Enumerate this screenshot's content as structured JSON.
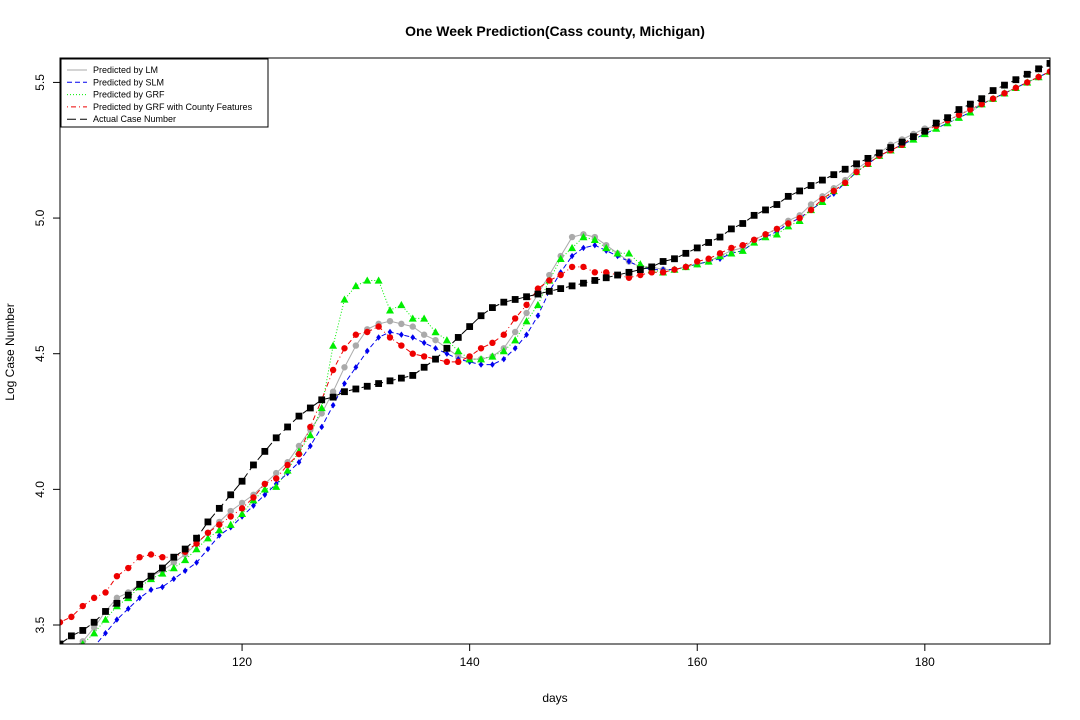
{
  "chart_data": {
    "type": "scatter",
    "title": "One Week Prediction(Cass county, Michigan)",
    "xlabel": "days",
    "ylabel": "Log Case Number",
    "xlim": [
      104,
      191
    ],
    "ylim": [
      3.43,
      5.59
    ],
    "x_ticks": [
      "120",
      "140",
      "160",
      "180"
    ],
    "y_ticks": [
      "3.5",
      "4.0",
      "4.5",
      "5.0",
      "5.5"
    ],
    "legend_position": "top-left",
    "x": [
      104,
      105,
      106,
      107,
      108,
      109,
      110,
      111,
      112,
      113,
      114,
      115,
      116,
      117,
      118,
      119,
      120,
      121,
      122,
      123,
      124,
      125,
      126,
      127,
      128,
      129,
      130,
      131,
      132,
      133,
      134,
      135,
      136,
      137,
      138,
      139,
      140,
      141,
      142,
      143,
      144,
      145,
      146,
      147,
      148,
      149,
      150,
      151,
      152,
      153,
      154,
      155,
      156,
      157,
      158,
      159,
      160,
      161,
      162,
      163,
      164,
      165,
      166,
      167,
      168,
      169,
      170,
      171,
      172,
      173,
      174,
      175,
      176,
      177,
      178,
      179,
      180,
      181,
      182,
      183,
      184,
      185,
      186,
      187,
      188,
      189,
      190,
      191
    ],
    "series": [
      {
        "name": "Predicted by LM",
        "line_style": "solid",
        "marker": "circle",
        "color": "#aaaaaa",
        "values": [
          3.39,
          3.41,
          3.44,
          3.49,
          3.55,
          3.6,
          3.62,
          3.65,
          3.68,
          3.7,
          3.73,
          3.76,
          3.8,
          3.84,
          3.88,
          3.92,
          3.95,
          3.98,
          4.02,
          4.06,
          4.1,
          4.16,
          4.22,
          4.28,
          4.36,
          4.45,
          4.53,
          4.59,
          4.61,
          4.62,
          4.61,
          4.6,
          4.57,
          4.55,
          4.52,
          4.49,
          4.48,
          4.48,
          4.49,
          4.52,
          4.58,
          4.65,
          4.72,
          4.79,
          4.86,
          4.93,
          4.94,
          4.93,
          4.9,
          4.87,
          4.84,
          4.82,
          4.82,
          4.81,
          4.81,
          4.82,
          4.83,
          4.84,
          4.86,
          4.88,
          4.89,
          4.92,
          4.94,
          4.96,
          4.99,
          5.01,
          5.05,
          5.08,
          5.11,
          5.14,
          5.18,
          5.21,
          5.24,
          5.27,
          5.29,
          5.31,
          5.33,
          5.34,
          5.36,
          5.38,
          5.4,
          5.42,
          5.44,
          5.46,
          5.48,
          5.5,
          5.52,
          5.54
        ]
      },
      {
        "name": "Predicted by SLM",
        "line_style": "dashed",
        "marker": "diamond",
        "color": "#0000ee",
        "values": [
          3.33,
          3.36,
          3.39,
          3.42,
          3.47,
          3.52,
          3.56,
          3.6,
          3.63,
          3.64,
          3.67,
          3.7,
          3.73,
          3.78,
          3.83,
          3.86,
          3.9,
          3.94,
          3.98,
          4.02,
          4.06,
          4.1,
          4.16,
          4.23,
          4.31,
          4.39,
          4.45,
          4.51,
          4.56,
          4.58,
          4.57,
          4.56,
          4.54,
          4.52,
          4.5,
          4.48,
          4.47,
          4.46,
          4.46,
          4.48,
          4.52,
          4.57,
          4.64,
          4.73,
          4.8,
          4.86,
          4.89,
          4.9,
          4.88,
          4.86,
          4.84,
          4.82,
          4.81,
          4.81,
          4.81,
          4.82,
          4.83,
          4.84,
          4.85,
          4.87,
          4.88,
          4.91,
          4.93,
          4.95,
          4.98,
          5.0,
          5.03,
          5.06,
          5.09,
          5.13,
          5.17,
          5.2,
          5.23,
          5.25,
          5.27,
          5.29,
          5.31,
          5.33,
          5.35,
          5.37,
          5.39,
          5.42,
          5.44,
          5.46,
          5.48,
          5.5,
          5.52,
          5.54
        ]
      },
      {
        "name": "Predicted by GRF",
        "line_style": "dotted",
        "marker": "triangle",
        "color": "#00ee00",
        "values": [
          3.38,
          3.4,
          3.43,
          3.47,
          3.52,
          3.57,
          3.6,
          3.64,
          3.67,
          3.69,
          3.71,
          3.74,
          3.78,
          3.82,
          3.85,
          3.87,
          3.91,
          3.96,
          4.0,
          4.01,
          4.07,
          4.14,
          4.2,
          4.3,
          4.53,
          4.7,
          4.75,
          4.77,
          4.77,
          4.66,
          4.68,
          4.63,
          4.63,
          4.58,
          4.55,
          4.51,
          4.48,
          4.48,
          4.49,
          4.51,
          4.55,
          4.62,
          4.68,
          4.77,
          4.85,
          4.89,
          4.93,
          4.92,
          4.89,
          4.87,
          4.87,
          4.83,
          4.81,
          4.8,
          4.81,
          4.82,
          4.83,
          4.84,
          4.86,
          4.87,
          4.88,
          4.91,
          4.93,
          4.94,
          4.97,
          4.99,
          5.03,
          5.06,
          5.1,
          5.13,
          5.17,
          5.2,
          5.23,
          5.25,
          5.27,
          5.29,
          5.31,
          5.33,
          5.35,
          5.37,
          5.39,
          5.42,
          5.44,
          5.46,
          5.48,
          5.5,
          5.52,
          5.54
        ]
      },
      {
        "name": "Predicted by GRF with County Features",
        "line_style": "dotdash",
        "marker": "circle",
        "color": "#ee0000",
        "values": [
          3.51,
          3.53,
          3.57,
          3.6,
          3.62,
          3.68,
          3.71,
          3.75,
          3.76,
          3.75,
          3.75,
          3.77,
          3.8,
          3.84,
          3.87,
          3.9,
          3.93,
          3.97,
          4.02,
          4.04,
          4.09,
          4.13,
          4.23,
          4.33,
          4.44,
          4.52,
          4.57,
          4.58,
          4.6,
          4.56,
          4.53,
          4.5,
          4.49,
          4.48,
          4.47,
          4.47,
          4.49,
          4.52,
          4.54,
          4.57,
          4.63,
          4.68,
          4.74,
          4.77,
          4.79,
          4.82,
          4.82,
          4.8,
          4.8,
          4.79,
          4.78,
          4.79,
          4.8,
          4.8,
          4.81,
          4.82,
          4.84,
          4.85,
          4.87,
          4.89,
          4.9,
          4.92,
          4.94,
          4.96,
          4.98,
          5.0,
          5.03,
          5.07,
          5.1,
          5.13,
          5.17,
          5.2,
          5.23,
          5.25,
          5.27,
          5.3,
          5.32,
          5.34,
          5.36,
          5.38,
          5.4,
          5.42,
          5.44,
          5.46,
          5.48,
          5.5,
          5.52,
          5.54
        ]
      },
      {
        "name": "Actual Case Number",
        "line_style": "longdash",
        "marker": "square",
        "color": "#000000",
        "values": [
          3.43,
          3.46,
          3.48,
          3.51,
          3.55,
          3.58,
          3.61,
          3.65,
          3.68,
          3.71,
          3.75,
          3.78,
          3.82,
          3.88,
          3.93,
          3.98,
          4.03,
          4.09,
          4.14,
          4.19,
          4.23,
          4.27,
          4.3,
          4.33,
          4.34,
          4.36,
          4.37,
          4.38,
          4.39,
          4.4,
          4.41,
          4.42,
          4.45,
          4.48,
          4.52,
          4.56,
          4.6,
          4.64,
          4.67,
          4.69,
          4.7,
          4.71,
          4.72,
          4.73,
          4.74,
          4.75,
          4.76,
          4.77,
          4.78,
          4.79,
          4.8,
          4.81,
          4.82,
          4.84,
          4.85,
          4.87,
          4.89,
          4.91,
          4.93,
          4.96,
          4.98,
          5.01,
          5.03,
          5.05,
          5.08,
          5.1,
          5.12,
          5.14,
          5.16,
          5.18,
          5.2,
          5.22,
          5.24,
          5.26,
          5.28,
          5.3,
          5.32,
          5.35,
          5.37,
          5.4,
          5.42,
          5.44,
          5.47,
          5.49,
          5.51,
          5.53,
          5.55,
          5.57
        ]
      }
    ]
  }
}
